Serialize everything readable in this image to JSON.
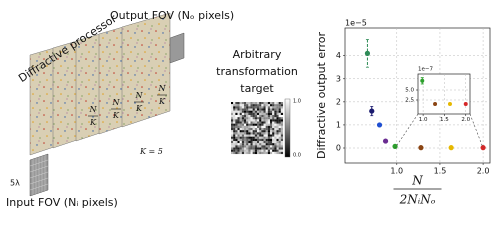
{
  "diagram": {
    "processor_label": "Diffractive processor",
    "output_label": "Output FOV (Nₒ pixels)",
    "input_label": "Input FOV (Nᵢ pixels)",
    "pixel_size_label": "5λ",
    "layers_label": "K = 5",
    "layer_fractions": [
      {
        "numerator": "N",
        "denominator": "K"
      },
      {
        "numerator": "N",
        "denominator": "K"
      },
      {
        "numerator": "N",
        "denominator": "K"
      },
      {
        "numerator": "N",
        "denominator": "K"
      }
    ]
  },
  "target": {
    "title_lines": [
      "Arbitrary",
      "transformation",
      "target"
    ],
    "colorbar_max": "1.0",
    "colorbar_min": "0.0"
  },
  "chart_data": {
    "type": "scatter",
    "ylabel": "Diffractive output error",
    "xlabel": {
      "numerator": "N",
      "denominator": "2NᵢNₒ"
    },
    "offset_label": "1e−5",
    "x": [
      0.66,
      0.71,
      0.8,
      0.87,
      0.98,
      1.28,
      1.63,
      2.0
    ],
    "values": [
      4.1,
      1.6,
      1.0,
      0.3,
      0.07,
      0.015,
      0.015,
      0.015
    ],
    "errors": [
      0.6,
      0.2,
      null,
      null,
      null,
      null,
      null,
      null
    ],
    "colors": [
      "#2e8b57",
      "#1a1a6e",
      "#1f4fd1",
      "#6a2c91",
      "#2ca02c",
      "#8b4513",
      "#e6b800",
      "#d62728"
    ],
    "xlim": [
      0.4,
      2.08
    ],
    "ylim": [
      -0.65,
      5.2
    ],
    "xticks": [
      {
        "value": 1,
        "label": "1.0"
      },
      1.5,
      {
        "value": 2,
        "label": "2.0"
      }
    ],
    "yticks": [
      0,
      1,
      2,
      3,
      4
    ],
    "grid": true,
    "inset": {
      "offset_label": "1e−7",
      "x": [
        0.98,
        1.28,
        1.63,
        2.0
      ],
      "values": [
        7.3,
        1.5,
        1.5,
        1.5
      ],
      "errors": [
        0.8,
        null,
        null,
        null
      ],
      "colors": [
        "#2ca02c",
        "#8b4513",
        "#e6b800",
        "#d62728"
      ],
      "xlim": [
        0.88,
        2.1
      ],
      "ylim": [
        -1,
        9
      ],
      "xticks": [
        {
          "value": 1,
          "label": "1.0"
        },
        1.5,
        {
          "value": 2,
          "label": "2.0"
        }
      ],
      "yticks": [
        2.5,
        {
          "value": 5,
          "label": "5.0"
        }
      ]
    }
  }
}
